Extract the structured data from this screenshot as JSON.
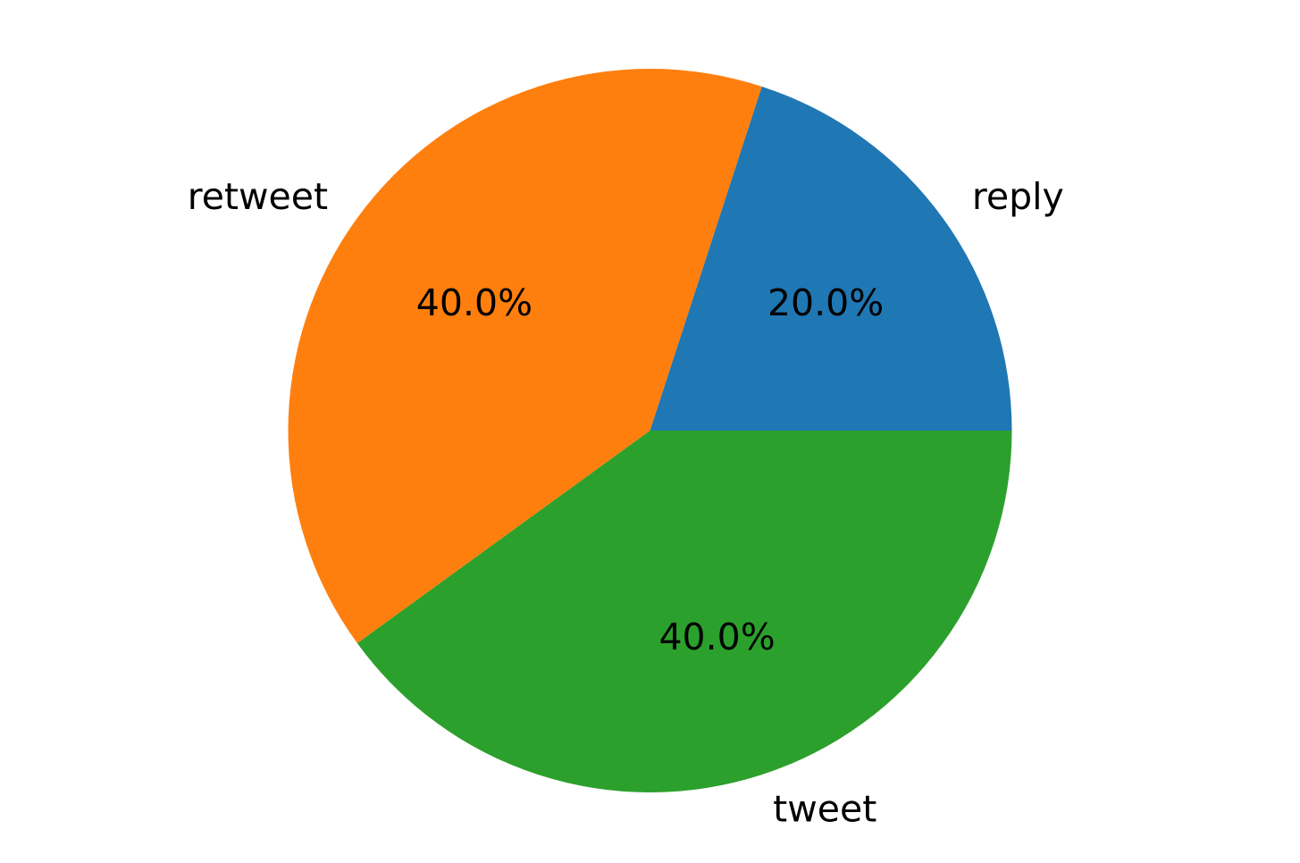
{
  "chart_data": {
    "type": "pie",
    "labels": [
      "reply",
      "retweet",
      "tweet"
    ],
    "values": [
      20.0,
      40.0,
      40.0
    ],
    "percent_labels": [
      "20.0%",
      "40.0%",
      "40.0%"
    ],
    "colors": [
      "#1f77b4",
      "#ff7f0e",
      "#2ca02c"
    ],
    "start_angle_deg": 0,
    "direction": "counterclockwise",
    "legend": "none"
  }
}
